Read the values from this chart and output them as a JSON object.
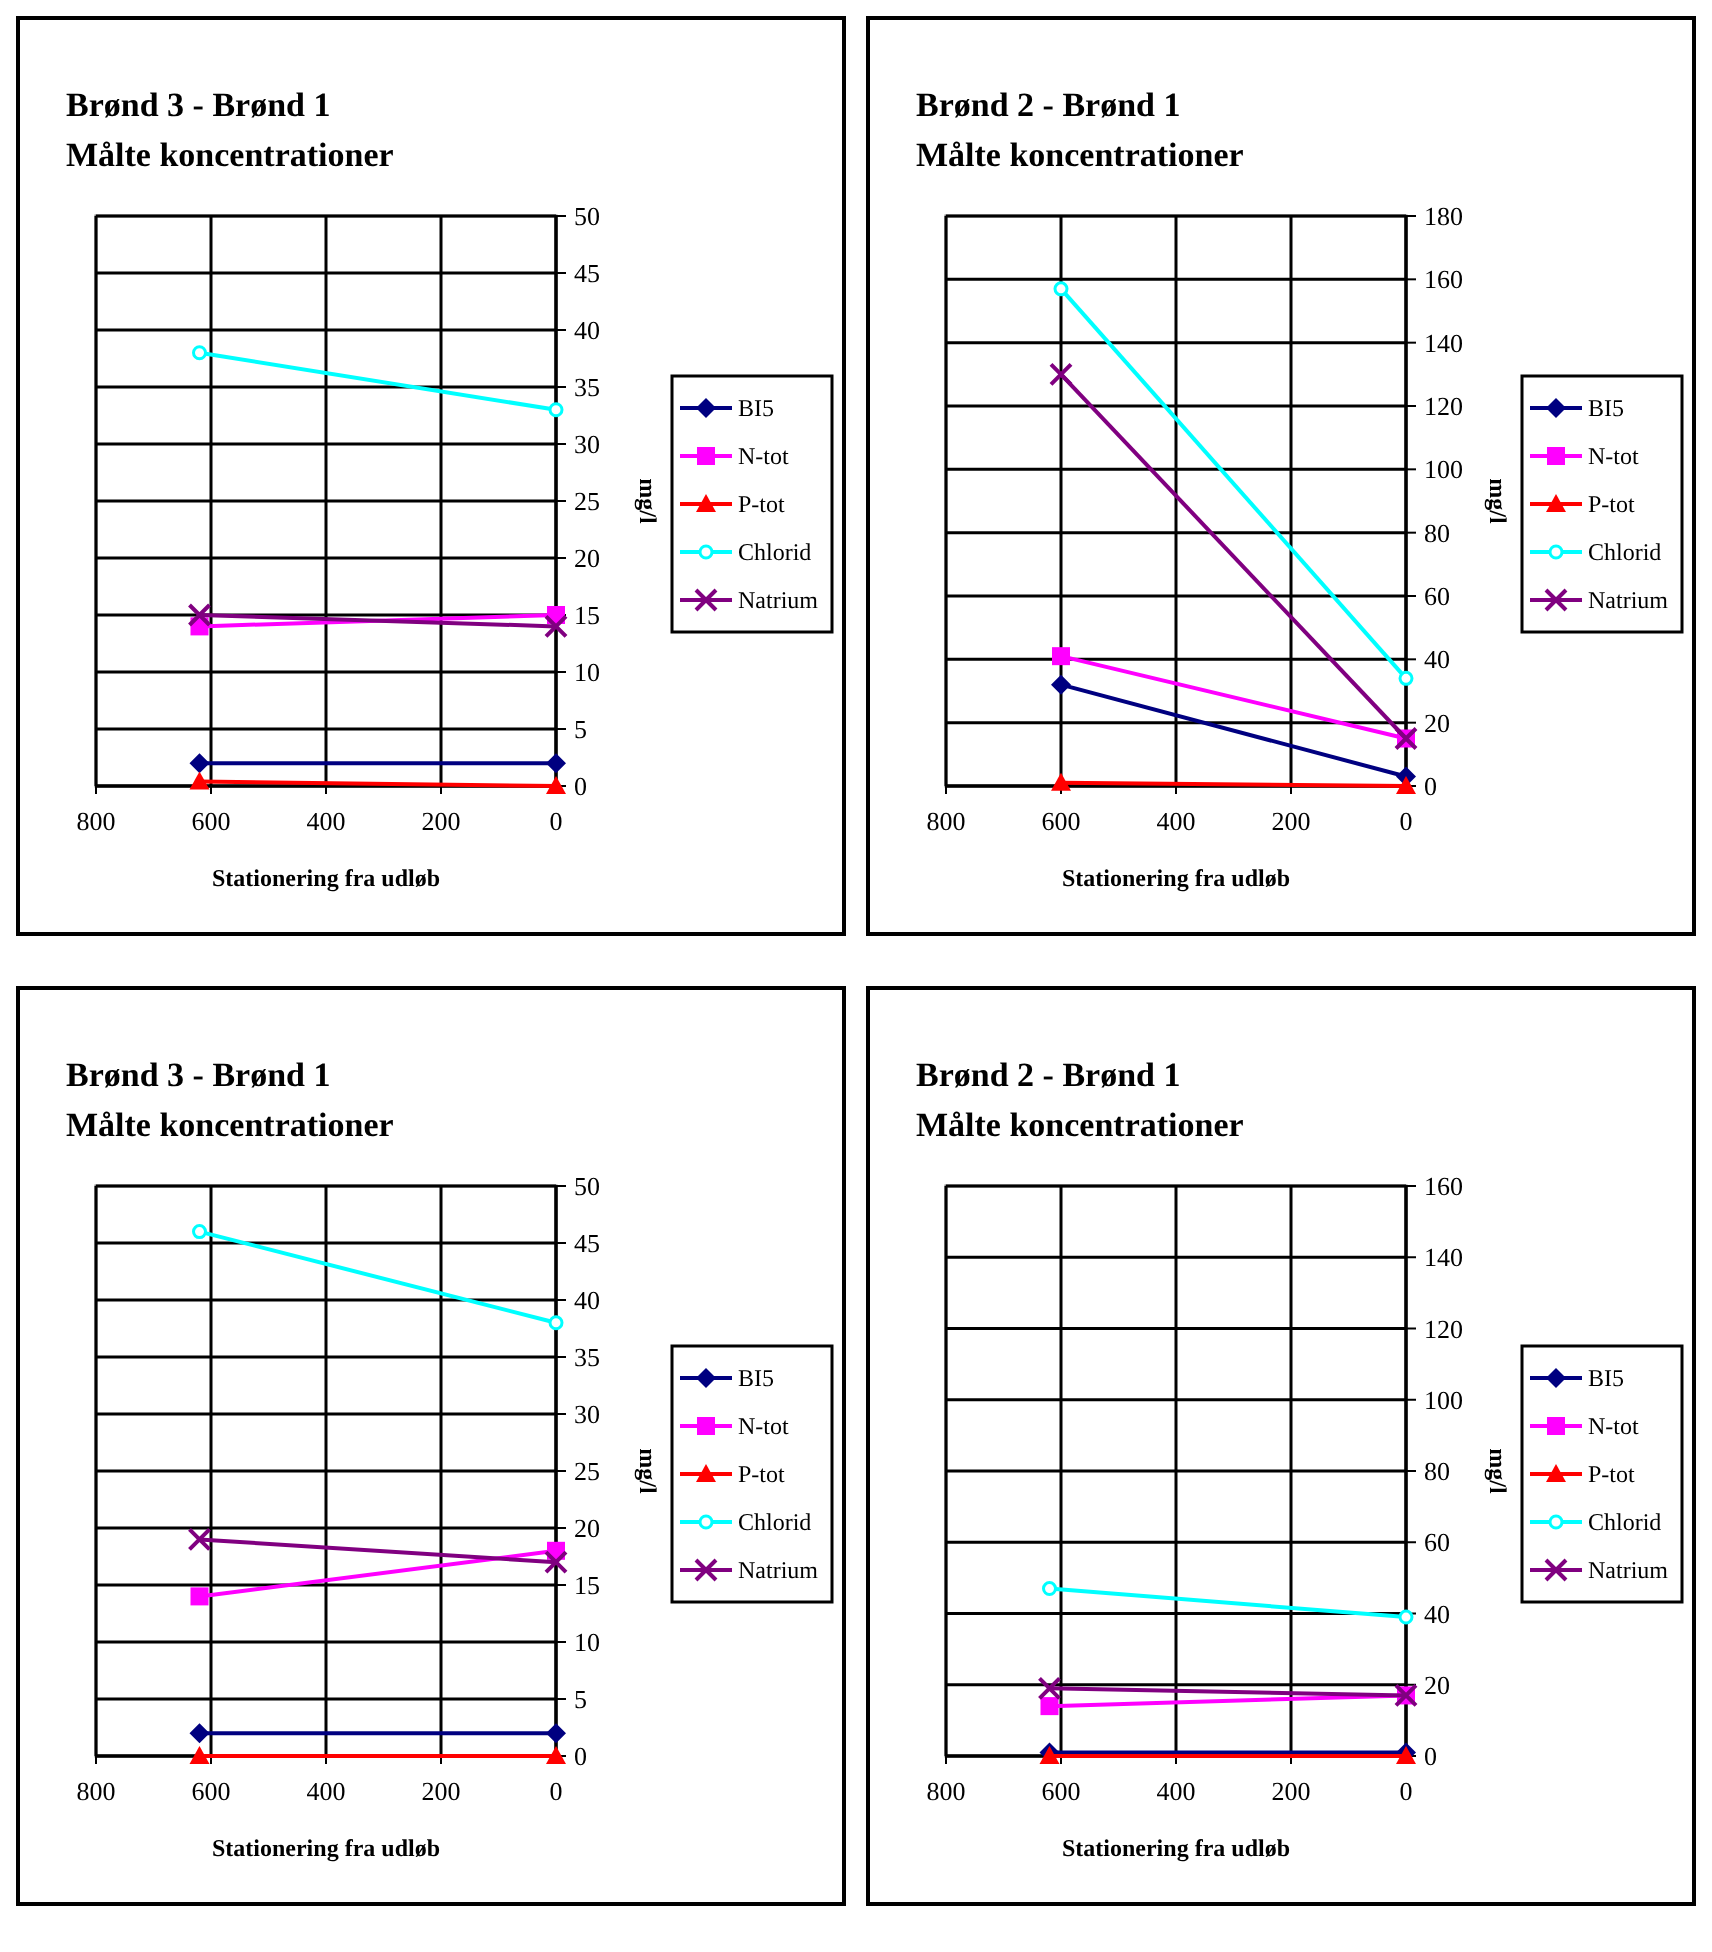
{
  "chart_data": [
    {
      "type": "line",
      "title": "Brønd 3 - Brønd 1",
      "subtitle": "Målte koncentrationer",
      "xlabel": "Stationering fra udløb",
      "ylabel": "mg/l",
      "x": [
        620,
        0
      ],
      "xlim": [
        800,
        0
      ],
      "xticks": [
        800,
        600,
        400,
        200,
        0
      ],
      "ylim": [
        0,
        50
      ],
      "yticks": [
        0,
        5,
        10,
        15,
        20,
        25,
        30,
        35,
        40,
        45,
        50
      ],
      "grid": true,
      "legend": "right",
      "series": [
        {
          "name": "BI5",
          "color": "#000080",
          "marker": "diamond",
          "values": [
            2,
            2
          ]
        },
        {
          "name": "N-tot",
          "color": "#ff00ff",
          "marker": "square",
          "values": [
            14,
            15
          ]
        },
        {
          "name": "P-tot",
          "color": "#ff0000",
          "marker": "triangle",
          "values": [
            0.4,
            0
          ]
        },
        {
          "name": "Chlorid",
          "color": "#00ffff",
          "marker": "circle",
          "values": [
            38,
            33
          ]
        },
        {
          "name": "Natrium",
          "color": "#800080",
          "marker": "cross",
          "values": [
            15,
            14
          ]
        }
      ]
    },
    {
      "type": "line",
      "title": "Brønd 2 - Brønd 1",
      "subtitle": "Målte koncentrationer",
      "xlabel": "Stationering fra udløb",
      "ylabel": "mg/l",
      "x": [
        600,
        0
      ],
      "xlim": [
        800,
        0
      ],
      "xticks": [
        800,
        600,
        400,
        200,
        0
      ],
      "ylim": [
        0,
        180
      ],
      "yticks": [
        0,
        20,
        40,
        60,
        80,
        100,
        120,
        140,
        160,
        180
      ],
      "grid": true,
      "legend": "right",
      "series": [
        {
          "name": "BI5",
          "color": "#000080",
          "marker": "diamond",
          "values": [
            32,
            3
          ]
        },
        {
          "name": "N-tot",
          "color": "#ff00ff",
          "marker": "square",
          "values": [
            41,
            15
          ]
        },
        {
          "name": "P-tot",
          "color": "#ff0000",
          "marker": "triangle",
          "values": [
            1,
            0
          ]
        },
        {
          "name": "Chlorid",
          "color": "#00ffff",
          "marker": "circle",
          "values": [
            157,
            34
          ]
        },
        {
          "name": "Natrium",
          "color": "#800080",
          "marker": "cross",
          "values": [
            130,
            15
          ]
        }
      ]
    },
    {
      "type": "line",
      "title": "Brønd 3 - Brønd 1",
      "subtitle": "Målte koncentrationer",
      "xlabel": "Stationering fra udløb",
      "ylabel": "mg/l",
      "x": [
        620,
        0
      ],
      "xlim": [
        800,
        0
      ],
      "xticks": [
        800,
        600,
        400,
        200,
        0
      ],
      "ylim": [
        0,
        50
      ],
      "yticks": [
        0,
        5,
        10,
        15,
        20,
        25,
        30,
        35,
        40,
        45,
        50
      ],
      "grid": true,
      "legend": "right",
      "series": [
        {
          "name": "BI5",
          "color": "#000080",
          "marker": "diamond",
          "values": [
            2,
            2
          ]
        },
        {
          "name": "N-tot",
          "color": "#ff00ff",
          "marker": "square",
          "values": [
            14,
            18
          ]
        },
        {
          "name": "P-tot",
          "color": "#ff0000",
          "marker": "triangle",
          "values": [
            0,
            0
          ]
        },
        {
          "name": "Chlorid",
          "color": "#00ffff",
          "marker": "circle",
          "values": [
            46,
            38
          ]
        },
        {
          "name": "Natrium",
          "color": "#800080",
          "marker": "cross",
          "values": [
            19,
            17
          ]
        }
      ]
    },
    {
      "type": "line",
      "title": "Brønd 2 - Brønd 1",
      "subtitle": "Målte koncentrationer",
      "xlabel": "Stationering fra udløb",
      "ylabel": "mg/l",
      "x": [
        620,
        0
      ],
      "xlim": [
        800,
        0
      ],
      "xticks": [
        800,
        600,
        400,
        200,
        0
      ],
      "ylim": [
        0,
        160
      ],
      "yticks": [
        0,
        20,
        40,
        60,
        80,
        100,
        120,
        140,
        160
      ],
      "grid": true,
      "legend": "right",
      "series": [
        {
          "name": "BI5",
          "color": "#000080",
          "marker": "diamond",
          "values": [
            1,
            1
          ]
        },
        {
          "name": "N-tot",
          "color": "#ff00ff",
          "marker": "square",
          "values": [
            14,
            17
          ]
        },
        {
          "name": "P-tot",
          "color": "#ff0000",
          "marker": "triangle",
          "values": [
            0,
            0
          ]
        },
        {
          "name": "Chlorid",
          "color": "#00ffff",
          "marker": "circle",
          "values": [
            47,
            39
          ]
        },
        {
          "name": "Natrium",
          "color": "#800080",
          "marker": "cross",
          "values": [
            19,
            17
          ]
        }
      ]
    }
  ]
}
